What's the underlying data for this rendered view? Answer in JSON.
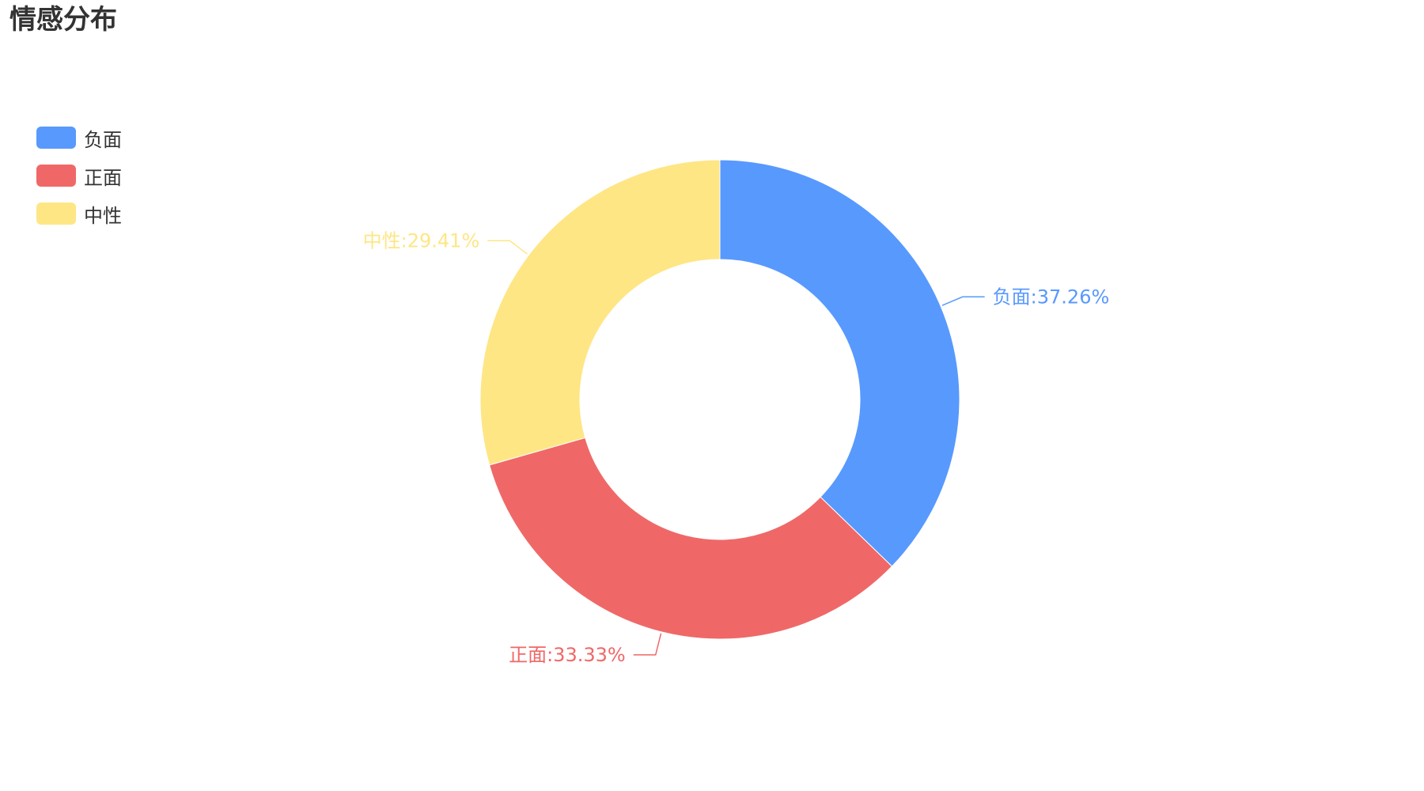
{
  "chart_data": {
    "type": "pie",
    "title": "情感分布",
    "legend_position": "top-left",
    "donut": true,
    "categories": [
      "负面",
      "正面",
      "中性"
    ],
    "values": [
      37.26,
      33.33,
      29.41
    ],
    "labels": [
      "负面:37.26%",
      "正面:33.33%",
      "中性:29.41%"
    ],
    "colors": [
      "#5899fd",
      "#ef6867",
      "#fee685"
    ]
  }
}
